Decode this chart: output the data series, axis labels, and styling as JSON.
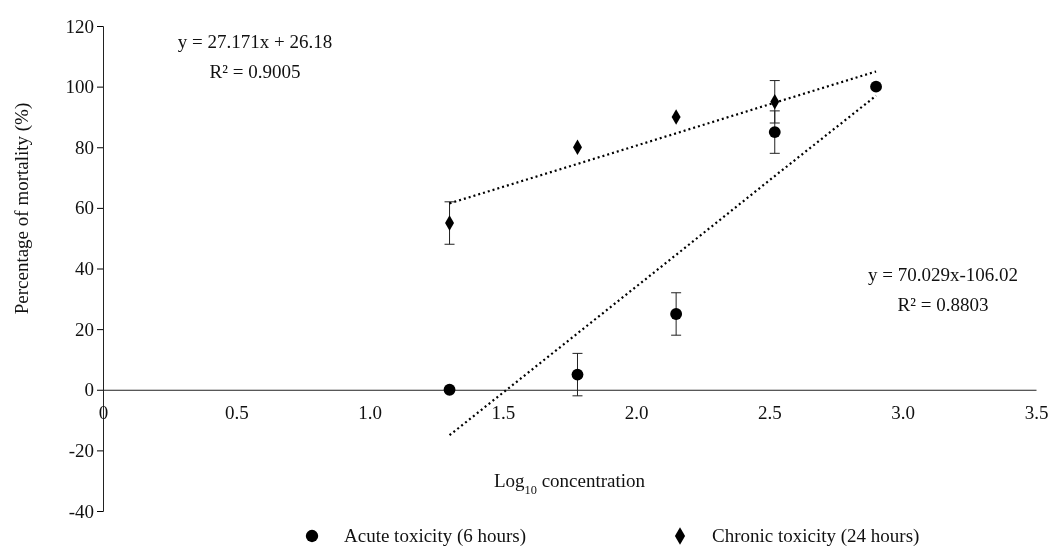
{
  "chart_data": {
    "type": "scatter",
    "xlabel": "Log$_{10}$ concentration",
    "ylabel": "Percentage of mortality (%)",
    "x": [
      1.3,
      1.78,
      2.15,
      2.52,
      2.9
    ],
    "xlim": [
      0,
      3.5
    ],
    "xticks": [
      {
        "value": 0,
        "label": "0"
      },
      0.5,
      {
        "value": 1,
        "label": "1.0"
      },
      1.5,
      {
        "value": 2,
        "label": "2.0"
      },
      2.5,
      {
        "value": 3,
        "label": "3.0"
      },
      3.5
    ],
    "ylim": [
      -40,
      120
    ],
    "yticks": [
      -40,
      -20,
      0,
      20,
      40,
      60,
      80,
      100,
      120
    ],
    "series": [
      {
        "name": "Acute toxicity (6 hours)",
        "type": "scatter",
        "color": "#000000",
        "marker": "circle",
        "values": [
          0,
          5,
          25,
          85,
          100
        ],
        "errors": [
          null,
          7,
          7,
          7,
          null
        ]
      },
      {
        "name": "Chronic toxicity (24 hours)",
        "type": "scatter",
        "color": "#000000",
        "marker": "diamond",
        "values": [
          55,
          80,
          90,
          95,
          null
        ],
        "errors": [
          7,
          null,
          null,
          7,
          null
        ]
      },
      {
        "type": "line",
        "color": "#000000",
        "line_style": "dotted",
        "values": [
          61.5,
          74.5,
          84.6,
          94.7,
          105
        ]
      },
      {
        "type": "line",
        "color": "#000000",
        "line_style": "dotted",
        "values": [
          -15,
          18.6,
          44.5,
          70.5,
          97
        ]
      }
    ],
    "annotations": [
      "y = 27.171x + 26.18",
      "R² = 0.9005",
      "y = 70.029x-106.02",
      "R² = 0.8803"
    ],
    "legend": "bottom"
  }
}
